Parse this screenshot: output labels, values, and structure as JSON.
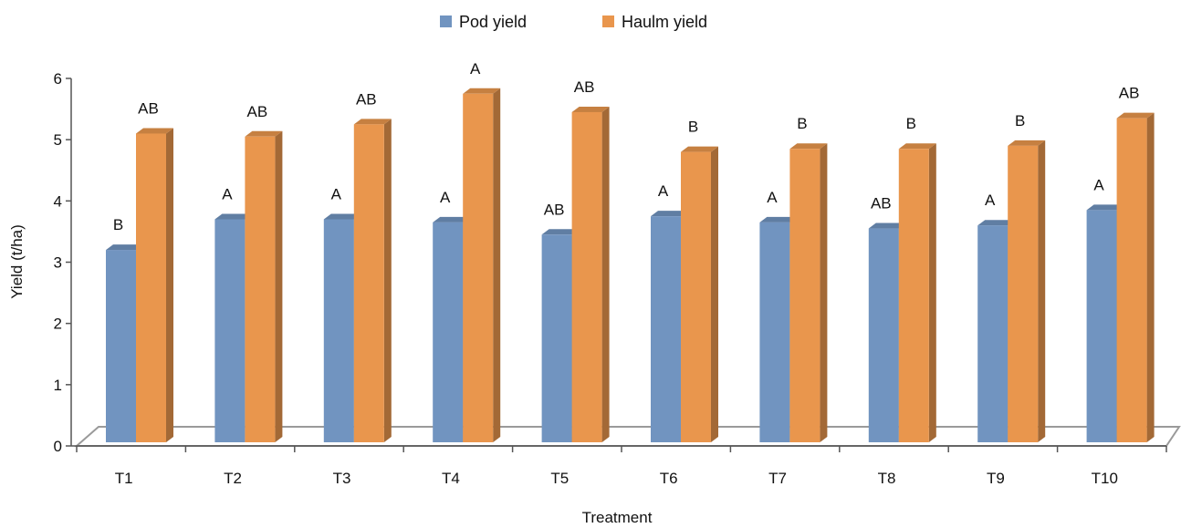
{
  "chart_data": {
    "type": "bar",
    "title": "",
    "xlabel": "Treatment",
    "ylabel": "Yield (t/ha)",
    "ylim": [
      0,
      6
    ],
    "yticks": [
      "0",
      "1",
      "2",
      "3",
      "4",
      "5",
      "6"
    ],
    "categories": [
      "T1",
      "T2",
      "T3",
      "T4",
      "T5",
      "T6",
      "T7",
      "T8",
      "T9",
      "T10"
    ],
    "legend_position": "top-center",
    "series": [
      {
        "name": "Pod yield",
        "color": "#7194c0",
        "values": [
          3.2,
          3.7,
          3.7,
          3.65,
          3.45,
          3.75,
          3.65,
          3.55,
          3.6,
          3.85
        ],
        "significance": [
          "B",
          "A",
          "A",
          "A",
          "AB",
          "A",
          "A",
          "AB",
          "A",
          "A"
        ]
      },
      {
        "name": "Haulm yield",
        "color": "#e9964d",
        "values": [
          5.1,
          5.05,
          5.25,
          5.75,
          5.45,
          4.8,
          4.85,
          4.85,
          4.9,
          5.35
        ],
        "significance": [
          "AB",
          "AB",
          "AB",
          "A",
          "AB",
          "B",
          "B",
          "B",
          "B",
          "AB"
        ]
      }
    ]
  }
}
